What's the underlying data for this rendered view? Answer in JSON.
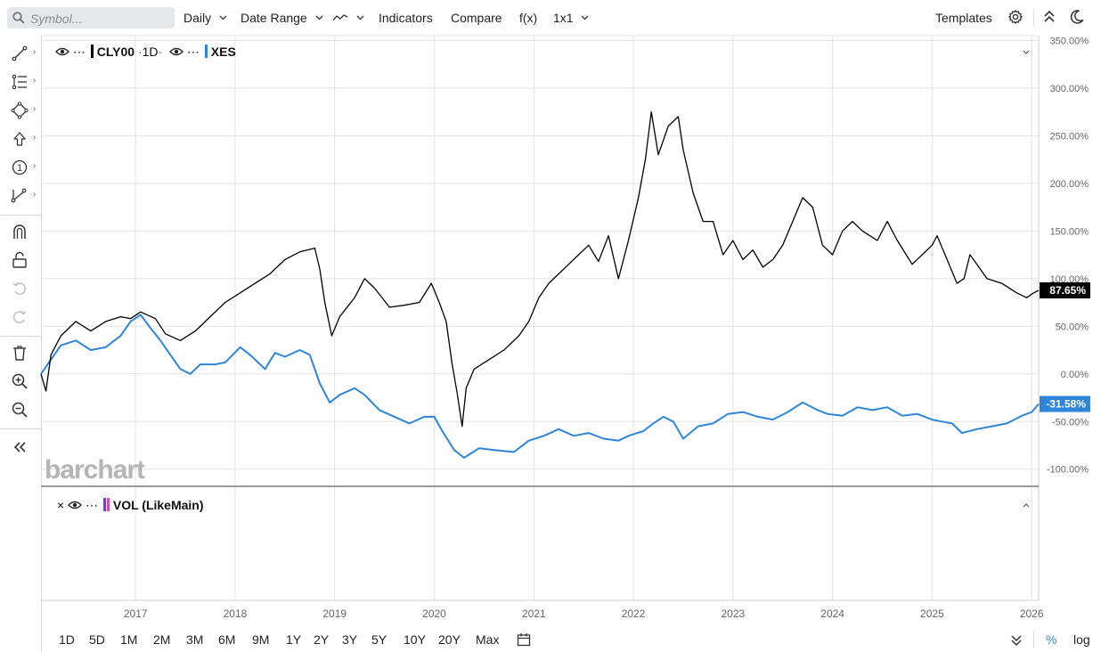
{
  "toolbar": {
    "search_placeholder": "Symbol...",
    "interval": "Daily",
    "date_range": "Date Range",
    "indicators": "Indicators",
    "compare": "Compare",
    "fx": "f(x)",
    "layout": "1x1",
    "templates": "Templates",
    "icons": [
      "search-icon",
      "line-style-icon",
      "gear-icon",
      "collapse-up-icon",
      "dark-mode-icon"
    ]
  },
  "sidebar": {
    "tools": [
      "trend-line-icon",
      "fib-levels-icon",
      "shapes-icon",
      "arrow-up-icon",
      "counter-icon",
      "measure-icon",
      "magnet-icon",
      "lock-icon",
      "undo-icon",
      "redo-icon",
      "trash-icon",
      "zoom-in-icon",
      "zoom-out-icon",
      "collapse-sidebar-icon"
    ]
  },
  "legend": {
    "main_symbol": "CLY00",
    "main_interval": "1D",
    "compare_symbol": "XES",
    "volume_label": "VOL (LikeMain)"
  },
  "watermark": "barchart",
  "bottom": {
    "ranges": [
      "1D",
      "5D",
      "1M",
      "2M",
      "3M",
      "6M",
      "9M",
      "1Y",
      "2Y",
      "3Y",
      "5Y",
      "10Y",
      "20Y",
      "Max"
    ],
    "percent": "%",
    "log": "log"
  },
  "colors": {
    "main": "#000000",
    "compare": "#2f86d9",
    "grid": "#e3e3e3"
  },
  "chart_data": {
    "type": "line",
    "x_unit": "year",
    "xlim": [
      2016.05,
      2026.07
    ],
    "ylim": [
      -118,
      355
    ],
    "y_ticks": [
      -100,
      -50,
      0,
      50,
      100,
      150,
      200,
      250,
      300,
      350
    ],
    "y_tick_labels": [
      "-100.00%",
      "-50.00%",
      "0.00%",
      "50.00%",
      "100.00%",
      "150.00%",
      "200.00%",
      "250.00%",
      "300.00%",
      "350.00%"
    ],
    "x_ticks": [
      2017,
      2018,
      2019,
      2020,
      2021,
      2022,
      2023,
      2024,
      2025,
      2026
    ],
    "x_tick_labels": [
      "2017",
      "2018",
      "2019",
      "2020",
      "2021",
      "2022",
      "2023",
      "2024",
      "2025",
      "2026"
    ],
    "grid": true,
    "series": [
      {
        "name": "CLY00",
        "color": "#000000",
        "last_value_label": "87.65%",
        "points": [
          [
            2016.05,
            0
          ],
          [
            2016.1,
            -18
          ],
          [
            2016.15,
            20
          ],
          [
            2016.25,
            40
          ],
          [
            2016.4,
            55
          ],
          [
            2016.55,
            45
          ],
          [
            2016.7,
            55
          ],
          [
            2016.85,
            60
          ],
          [
            2016.95,
            58
          ],
          [
            2017.05,
            65
          ],
          [
            2017.2,
            58
          ],
          [
            2017.3,
            42
          ],
          [
            2017.45,
            35
          ],
          [
            2017.6,
            45
          ],
          [
            2017.75,
            60
          ],
          [
            2017.9,
            75
          ],
          [
            2018.05,
            85
          ],
          [
            2018.2,
            95
          ],
          [
            2018.35,
            105
          ],
          [
            2018.5,
            120
          ],
          [
            2018.65,
            128
          ],
          [
            2018.8,
            132
          ],
          [
            2018.85,
            110
          ],
          [
            2018.9,
            75
          ],
          [
            2018.97,
            40
          ],
          [
            2019.05,
            60
          ],
          [
            2019.2,
            80
          ],
          [
            2019.3,
            100
          ],
          [
            2019.4,
            90
          ],
          [
            2019.55,
            70
          ],
          [
            2019.7,
            72
          ],
          [
            2019.85,
            75
          ],
          [
            2019.97,
            95
          ],
          [
            2020.05,
            75
          ],
          [
            2020.12,
            55
          ],
          [
            2020.18,
            10
          ],
          [
            2020.23,
            -20
          ],
          [
            2020.28,
            -55
          ],
          [
            2020.32,
            -15
          ],
          [
            2020.4,
            5
          ],
          [
            2020.55,
            15
          ],
          [
            2020.7,
            25
          ],
          [
            2020.85,
            40
          ],
          [
            2020.95,
            55
          ],
          [
            2021.05,
            80
          ],
          [
            2021.15,
            95
          ],
          [
            2021.3,
            110
          ],
          [
            2021.45,
            125
          ],
          [
            2021.55,
            135
          ],
          [
            2021.65,
            118
          ],
          [
            2021.75,
            145
          ],
          [
            2021.85,
            100
          ],
          [
            2021.95,
            140
          ],
          [
            2022.05,
            185
          ],
          [
            2022.12,
            225
          ],
          [
            2022.18,
            275
          ],
          [
            2022.25,
            230
          ],
          [
            2022.35,
            260
          ],
          [
            2022.45,
            270
          ],
          [
            2022.5,
            235
          ],
          [
            2022.6,
            190
          ],
          [
            2022.7,
            160
          ],
          [
            2022.8,
            160
          ],
          [
            2022.9,
            125
          ],
          [
            2023.0,
            140
          ],
          [
            2023.1,
            120
          ],
          [
            2023.2,
            130
          ],
          [
            2023.3,
            112
          ],
          [
            2023.4,
            120
          ],
          [
            2023.5,
            135
          ],
          [
            2023.6,
            160
          ],
          [
            2023.7,
            185
          ],
          [
            2023.8,
            175
          ],
          [
            2023.9,
            135
          ],
          [
            2024.0,
            125
          ],
          [
            2024.1,
            150
          ],
          [
            2024.2,
            160
          ],
          [
            2024.3,
            150
          ],
          [
            2024.45,
            140
          ],
          [
            2024.55,
            160
          ],
          [
            2024.65,
            140
          ],
          [
            2024.8,
            115
          ],
          [
            2024.9,
            125
          ],
          [
            2025.0,
            135
          ],
          [
            2025.05,
            145
          ],
          [
            2025.15,
            120
          ],
          [
            2025.25,
            95
          ],
          [
            2025.32,
            100
          ],
          [
            2025.38,
            125
          ],
          [
            2025.45,
            115
          ],
          [
            2025.55,
            100
          ],
          [
            2025.7,
            95
          ],
          [
            2025.85,
            85
          ],
          [
            2025.95,
            80
          ],
          [
            2026.02,
            85
          ],
          [
            2026.07,
            87.65
          ]
        ]
      },
      {
        "name": "XES",
        "color": "#2f86d9",
        "last_value_label": "-31.58%",
        "points": [
          [
            2016.05,
            0
          ],
          [
            2016.15,
            15
          ],
          [
            2016.25,
            30
          ],
          [
            2016.4,
            35
          ],
          [
            2016.55,
            25
          ],
          [
            2016.7,
            28
          ],
          [
            2016.85,
            40
          ],
          [
            2016.95,
            55
          ],
          [
            2017.05,
            62
          ],
          [
            2017.15,
            48
          ],
          [
            2017.25,
            35
          ],
          [
            2017.35,
            20
          ],
          [
            2017.45,
            5
          ],
          [
            2017.55,
            0
          ],
          [
            2017.65,
            10
          ],
          [
            2017.8,
            10
          ],
          [
            2017.9,
            12
          ],
          [
            2018.05,
            28
          ],
          [
            2018.15,
            20
          ],
          [
            2018.3,
            5
          ],
          [
            2018.4,
            22
          ],
          [
            2018.5,
            18
          ],
          [
            2018.65,
            25
          ],
          [
            2018.75,
            20
          ],
          [
            2018.85,
            -10
          ],
          [
            2018.95,
            -30
          ],
          [
            2019.05,
            -22
          ],
          [
            2019.2,
            -15
          ],
          [
            2019.3,
            -22
          ],
          [
            2019.45,
            -38
          ],
          [
            2019.6,
            -45
          ],
          [
            2019.75,
            -52
          ],
          [
            2019.9,
            -45
          ],
          [
            2020.0,
            -45
          ],
          [
            2020.08,
            -60
          ],
          [
            2020.2,
            -80
          ],
          [
            2020.3,
            -88
          ],
          [
            2020.45,
            -78
          ],
          [
            2020.6,
            -80
          ],
          [
            2020.8,
            -82
          ],
          [
            2020.95,
            -70
          ],
          [
            2021.1,
            -65
          ],
          [
            2021.25,
            -58
          ],
          [
            2021.4,
            -65
          ],
          [
            2021.55,
            -62
          ],
          [
            2021.7,
            -68
          ],
          [
            2021.85,
            -70
          ],
          [
            2021.95,
            -65
          ],
          [
            2022.1,
            -60
          ],
          [
            2022.2,
            -52
          ],
          [
            2022.3,
            -45
          ],
          [
            2022.4,
            -50
          ],
          [
            2022.5,
            -68
          ],
          [
            2022.65,
            -55
          ],
          [
            2022.8,
            -52
          ],
          [
            2022.95,
            -42
          ],
          [
            2023.1,
            -40
          ],
          [
            2023.25,
            -45
          ],
          [
            2023.4,
            -48
          ],
          [
            2023.55,
            -40
          ],
          [
            2023.7,
            -30
          ],
          [
            2023.85,
            -38
          ],
          [
            2023.95,
            -42
          ],
          [
            2024.1,
            -44
          ],
          [
            2024.25,
            -35
          ],
          [
            2024.4,
            -38
          ],
          [
            2024.55,
            -35
          ],
          [
            2024.7,
            -44
          ],
          [
            2024.85,
            -42
          ],
          [
            2025.0,
            -48
          ],
          [
            2025.1,
            -50
          ],
          [
            2025.2,
            -52
          ],
          [
            2025.3,
            -62
          ],
          [
            2025.45,
            -58
          ],
          [
            2025.6,
            -55
          ],
          [
            2025.75,
            -52
          ],
          [
            2025.9,
            -44
          ],
          [
            2026.0,
            -40
          ],
          [
            2026.07,
            -31.58
          ]
        ]
      }
    ]
  }
}
